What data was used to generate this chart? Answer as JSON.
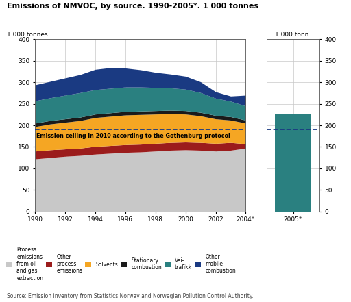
{
  "title": "Emissions of NMVOC, by source. 1990-2005*. 1 000 tonnes",
  "years": [
    1990,
    1991,
    1992,
    1993,
    1994,
    1995,
    1996,
    1997,
    1998,
    1999,
    2000,
    2001,
    2002,
    2003,
    2004
  ],
  "process_oil": [
    122,
    125,
    128,
    130,
    133,
    135,
    137,
    138,
    140,
    142,
    143,
    142,
    140,
    142,
    147
  ],
  "other_proc": [
    18,
    18,
    17,
    17,
    18,
    18,
    18,
    18,
    18,
    18,
    18,
    18,
    18,
    18,
    10
  ],
  "solvents": [
    57,
    60,
    62,
    64,
    67,
    68,
    69,
    69,
    68,
    67,
    65,
    62,
    57,
    52,
    48
  ],
  "stationary": [
    8,
    8,
    8,
    8,
    8,
    8,
    8,
    8,
    8,
    8,
    8,
    8,
    8,
    8,
    7
  ],
  "veitrafikk": [
    52,
    53,
    55,
    57,
    57,
    57,
    57,
    56,
    54,
    52,
    50,
    46,
    40,
    36,
    33
  ],
  "other_mobile": [
    37,
    38,
    40,
    42,
    47,
    48,
    44,
    40,
    35,
    32,
    30,
    25,
    15,
    12,
    25
  ],
  "bar_2005": 225,
  "emission_ceiling": 190,
  "colors": {
    "process_oil_gas": "#c8c8c8",
    "other_process": "#9b1c1c",
    "solvents": "#f5a623",
    "stationary": "#1a1a1a",
    "veitrafikk": "#2a8080",
    "other_mobile": "#1a3a82"
  },
  "bar_color": "#2a8080",
  "emission_color": "#1a3a82",
  "ylim": [
    0,
    400
  ],
  "yticks": [
    0,
    50,
    100,
    150,
    200,
    250,
    300,
    350,
    400
  ],
  "xticks": [
    1990,
    1992,
    1994,
    1996,
    1998,
    2000,
    2002,
    2004
  ],
  "xticklabels": [
    "1990",
    "1992",
    "1994",
    "1996",
    "1998",
    "2000",
    "2002",
    "2004*"
  ],
  "source_text": "Source: Emission inventory from Statistics Norway and Norwegian Pollution Control Authority."
}
